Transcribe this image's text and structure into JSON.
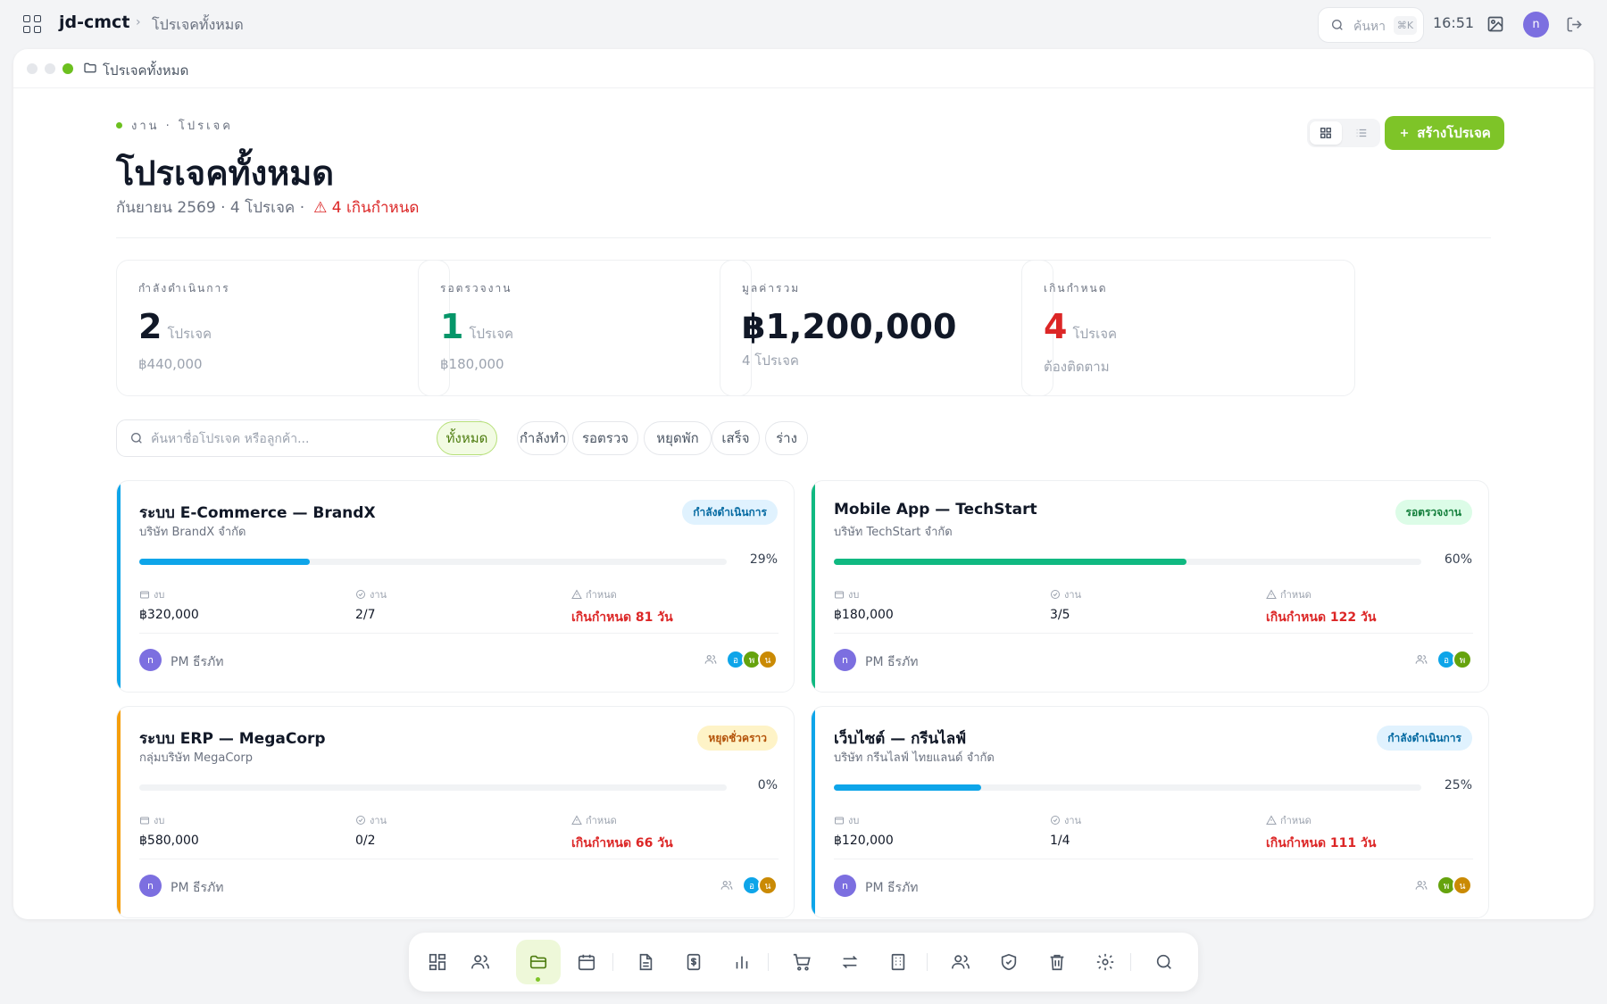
{
  "topbar": {
    "app_name": "jd-cmct",
    "breadcrumb": "โปรเจคทั้งหมด",
    "search_label": "ค้นหา",
    "search_kbd": "⌘K",
    "time": "16:51",
    "avatar_letter": "n"
  },
  "window": {
    "title": "โปรเจคทั้งหมด"
  },
  "header": {
    "eyebrow": "งาน · โปรเจค",
    "title": "โปรเจคทั้งหมด",
    "subtitle": "กันยายน 2569 · 4 โปรเจค ·",
    "overdue": "⚠ 4 เกินกำหนด",
    "create_label": "สร้างโปรเจค"
  },
  "stats": [
    {
      "label": "กำลังดำเนินการ",
      "value": "2",
      "unit": "โปรเจค",
      "sub": "฿440,000",
      "color": "#111827"
    },
    {
      "label": "รอตรวจงาน",
      "value": "1",
      "unit": "โปรเจค",
      "sub": "฿180,000",
      "color": "#059669"
    },
    {
      "label": "มูลค่ารวม",
      "value": "฿1,200,000",
      "unit": "",
      "sub": "4 โปรเจค",
      "color": "#111827"
    },
    {
      "label": "เกินกำหนด",
      "value": "4",
      "unit": "โปรเจค",
      "sub": "ต้องติดตาม",
      "color": "#dc2626"
    }
  ],
  "filter": {
    "placeholder": "ค้นหาชื่อโปรเจค หรือลูกค้า...",
    "chips": [
      "ทั้งหมด",
      "กำลังทำ",
      "รอตรวจ",
      "หยุดพัก",
      "เสร็จ",
      "ร่าง"
    ]
  },
  "meta_labels": {
    "budget": "งบ",
    "tasks": "งาน",
    "deadline": "กำหนด"
  },
  "projects": [
    {
      "title": "ระบบ E-Commerce — BrandX",
      "client": "บริษัท BrandX จำกัด",
      "status": "กำลังดำเนินการ",
      "badge_bg": "#e0f2fe",
      "badge_color": "#0369a1",
      "accent": "#0ea5e9",
      "progress": 29,
      "progress_label": "29%",
      "budget": "฿320,000",
      "tasks": "2/7",
      "deadline": "เกินกำหนด 81 วัน",
      "pm": "PM ธีรภัท",
      "pm_letter": "n",
      "members": [
        {
          "l": "อ",
          "c": "#0ea5e9"
        },
        {
          "l": "พ",
          "c": "#65a30d"
        },
        {
          "l": " น",
          "c": "#ca8a04"
        }
      ]
    },
    {
      "title": "Mobile App — TechStart",
      "client": "บริษัท TechStart จำกัด",
      "status": "รอตรวจงาน",
      "badge_bg": "#dcfce7",
      "badge_color": "#15803d",
      "accent": "#10b981",
      "progress": 60,
      "progress_label": "60%",
      "budget": "฿180,000",
      "tasks": "3/5",
      "deadline": "เกินกำหนด 122 วัน",
      "pm": "PM ธีรภัท",
      "pm_letter": "n",
      "members": [
        {
          "l": "อ",
          "c": "#0ea5e9"
        },
        {
          "l": "พ",
          "c": "#65a30d"
        }
      ]
    },
    {
      "title": "ระบบ ERP — MegaCorp",
      "client": "กลุ่มบริษัท MegaCorp",
      "status": "หยุดชั่วคราว",
      "badge_bg": "#fef3c7",
      "badge_color": "#b45309",
      "accent": "#f59e0b",
      "progress": 0,
      "progress_label": "0%",
      "budget": "฿580,000",
      "tasks": "0/2",
      "deadline": "เกินกำหนด 66 วัน",
      "pm": "PM ธีรภัท",
      "pm_letter": "n",
      "members": [
        {
          "l": "อ",
          "c": "#0ea5e9"
        },
        {
          "l": "น",
          "c": "#ca8a04"
        }
      ]
    },
    {
      "title": "เว็บไซต์ — กรีนไลฟ์",
      "client": "บริษัท กรีนไลฟ์ ไทยแลนด์ จำกัด",
      "status": "กำลังดำเนินการ",
      "badge_bg": "#e0f2fe",
      "badge_color": "#0369a1",
      "accent": "#0ea5e9",
      "progress": 25,
      "progress_label": "25%",
      "budget": "฿120,000",
      "tasks": "1/4",
      "deadline": "เกินกำหนด 111 วัน",
      "pm": "PM ธีรภัท",
      "pm_letter": "n",
      "members": [
        {
          "l": "พ",
          "c": "#65a30d"
        },
        {
          "l": "น",
          "c": "#ca8a04"
        }
      ]
    }
  ],
  "dock": [
    "dashboard-icon",
    "users-icon",
    "folder-icon",
    "calendar-icon",
    "document-icon",
    "invoice-icon",
    "chart-icon",
    "cart-icon",
    "transfer-icon",
    "building-icon",
    "team-icon",
    "shield-icon",
    "trash-icon",
    "settings-icon",
    "search-icon"
  ]
}
